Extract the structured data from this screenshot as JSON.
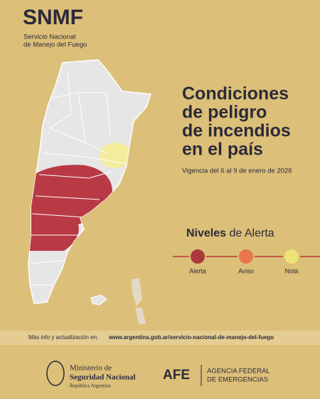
{
  "header": {
    "logo": "SNMF",
    "org_line1": "Servicio Nacional",
    "org_line2": "de Manejo del Fuego"
  },
  "title": {
    "lines": [
      "Condiciones",
      "de peligro",
      "de incendios",
      "en el país"
    ]
  },
  "validity": "Vigencia del 6 al 9 de enero de 2026",
  "legend": {
    "title_bold": "Niveles",
    "title_rest": "de Alerta",
    "items": [
      "Alerta",
      "Aviso",
      "Nota"
    ]
  },
  "footer": {
    "info": "Más info y actualización en:",
    "url": "www.argentina.gob.ar/servicio-nacional-de-manejo-del-fuego"
  },
  "logos": {
    "ministry_line1": "Ministerio de",
    "ministry_line2": "Seguridad Nacional",
    "ministry_line3": "República Argentina",
    "afe": "AFE",
    "afe_line1": "AGENCIA FEDERAL",
    "afe_line2": "DE EMERGENCIAS"
  }
}
